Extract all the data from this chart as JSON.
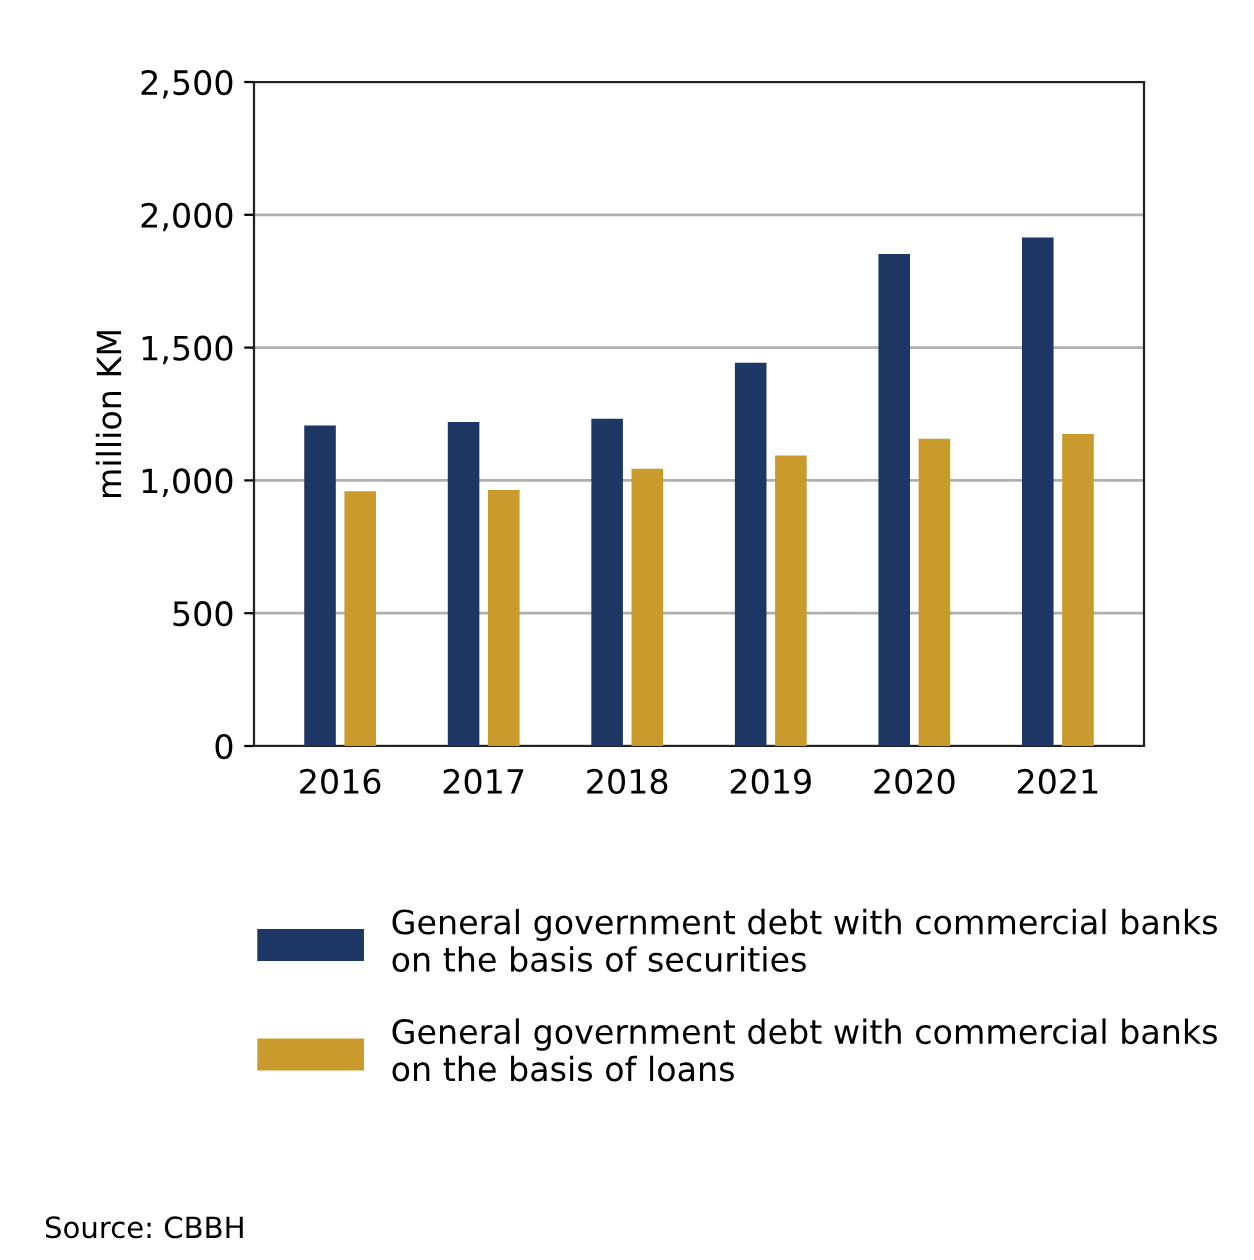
{
  "chart_data": {
    "type": "bar",
    "ylabel": "million KM",
    "categories": [
      "2016",
      "2017",
      "2018",
      "2019",
      "2020",
      "2021"
    ],
    "series": [
      {
        "name": "General government debt with commercial banks\non the basis of securities",
        "color": "#1d3764",
        "values": [
          1207,
          1220,
          1232,
          1443,
          1852,
          1915
        ]
      },
      {
        "name": "General government debt with commercial banks\non the basis of loans",
        "color": "#c99a2c",
        "values": [
          959,
          964,
          1044,
          1094,
          1157,
          1175
        ]
      }
    ],
    "ylim": [
      0,
      2500
    ],
    "yticks": [
      {
        "value": 0,
        "label": "0"
      },
      {
        "value": 500,
        "label": "500"
      },
      {
        "value": 1000,
        "label": "1,000"
      },
      {
        "value": 1500,
        "label": "1,500"
      },
      {
        "value": 2000,
        "label": "2,000"
      },
      {
        "value": 2500,
        "label": "2,500"
      }
    ],
    "grid": "y",
    "legend": "bottom",
    "annotations": [
      "Source: CBBH"
    ]
  }
}
